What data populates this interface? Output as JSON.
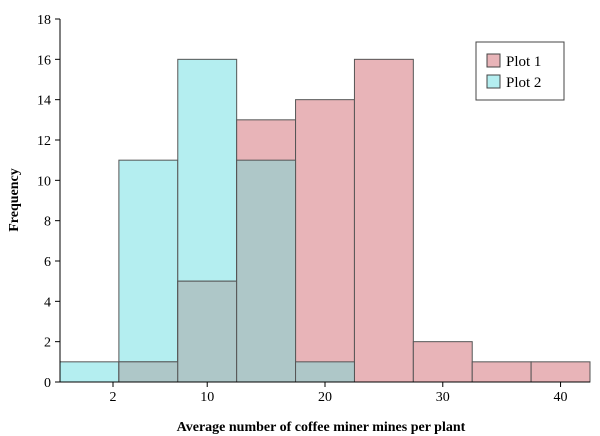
{
  "chart_data": {
    "type": "bar",
    "subtype": "overlapping-histogram",
    "title": "",
    "xlabel": "Average number of coffee miner mines per plant",
    "ylabel": "Frequency",
    "xlim": [
      -2.5,
      42.5
    ],
    "ylim": [
      0,
      18
    ],
    "x_ticks": [
      2,
      10,
      20,
      30,
      40
    ],
    "y_ticks": [
      0,
      2,
      4,
      6,
      8,
      10,
      12,
      14,
      16,
      18
    ],
    "bin_edges": [
      -2.5,
      2.5,
      7.5,
      12.5,
      17.5,
      22.5,
      27.5,
      32.5,
      37.5,
      42.5
    ],
    "series": [
      {
        "name": "Plot 1",
        "color": "#e8b4b8",
        "values": [
          0,
          1,
          5,
          13,
          14,
          16,
          2,
          1,
          1
        ]
      },
      {
        "name": "Plot 2",
        "color": "#b4eef0",
        "values": [
          1,
          11,
          16,
          11,
          1,
          0,
          0,
          0,
          0
        ]
      }
    ],
    "overlap_color": "#aec7c8",
    "grid": false,
    "legend_position": "top-right"
  }
}
